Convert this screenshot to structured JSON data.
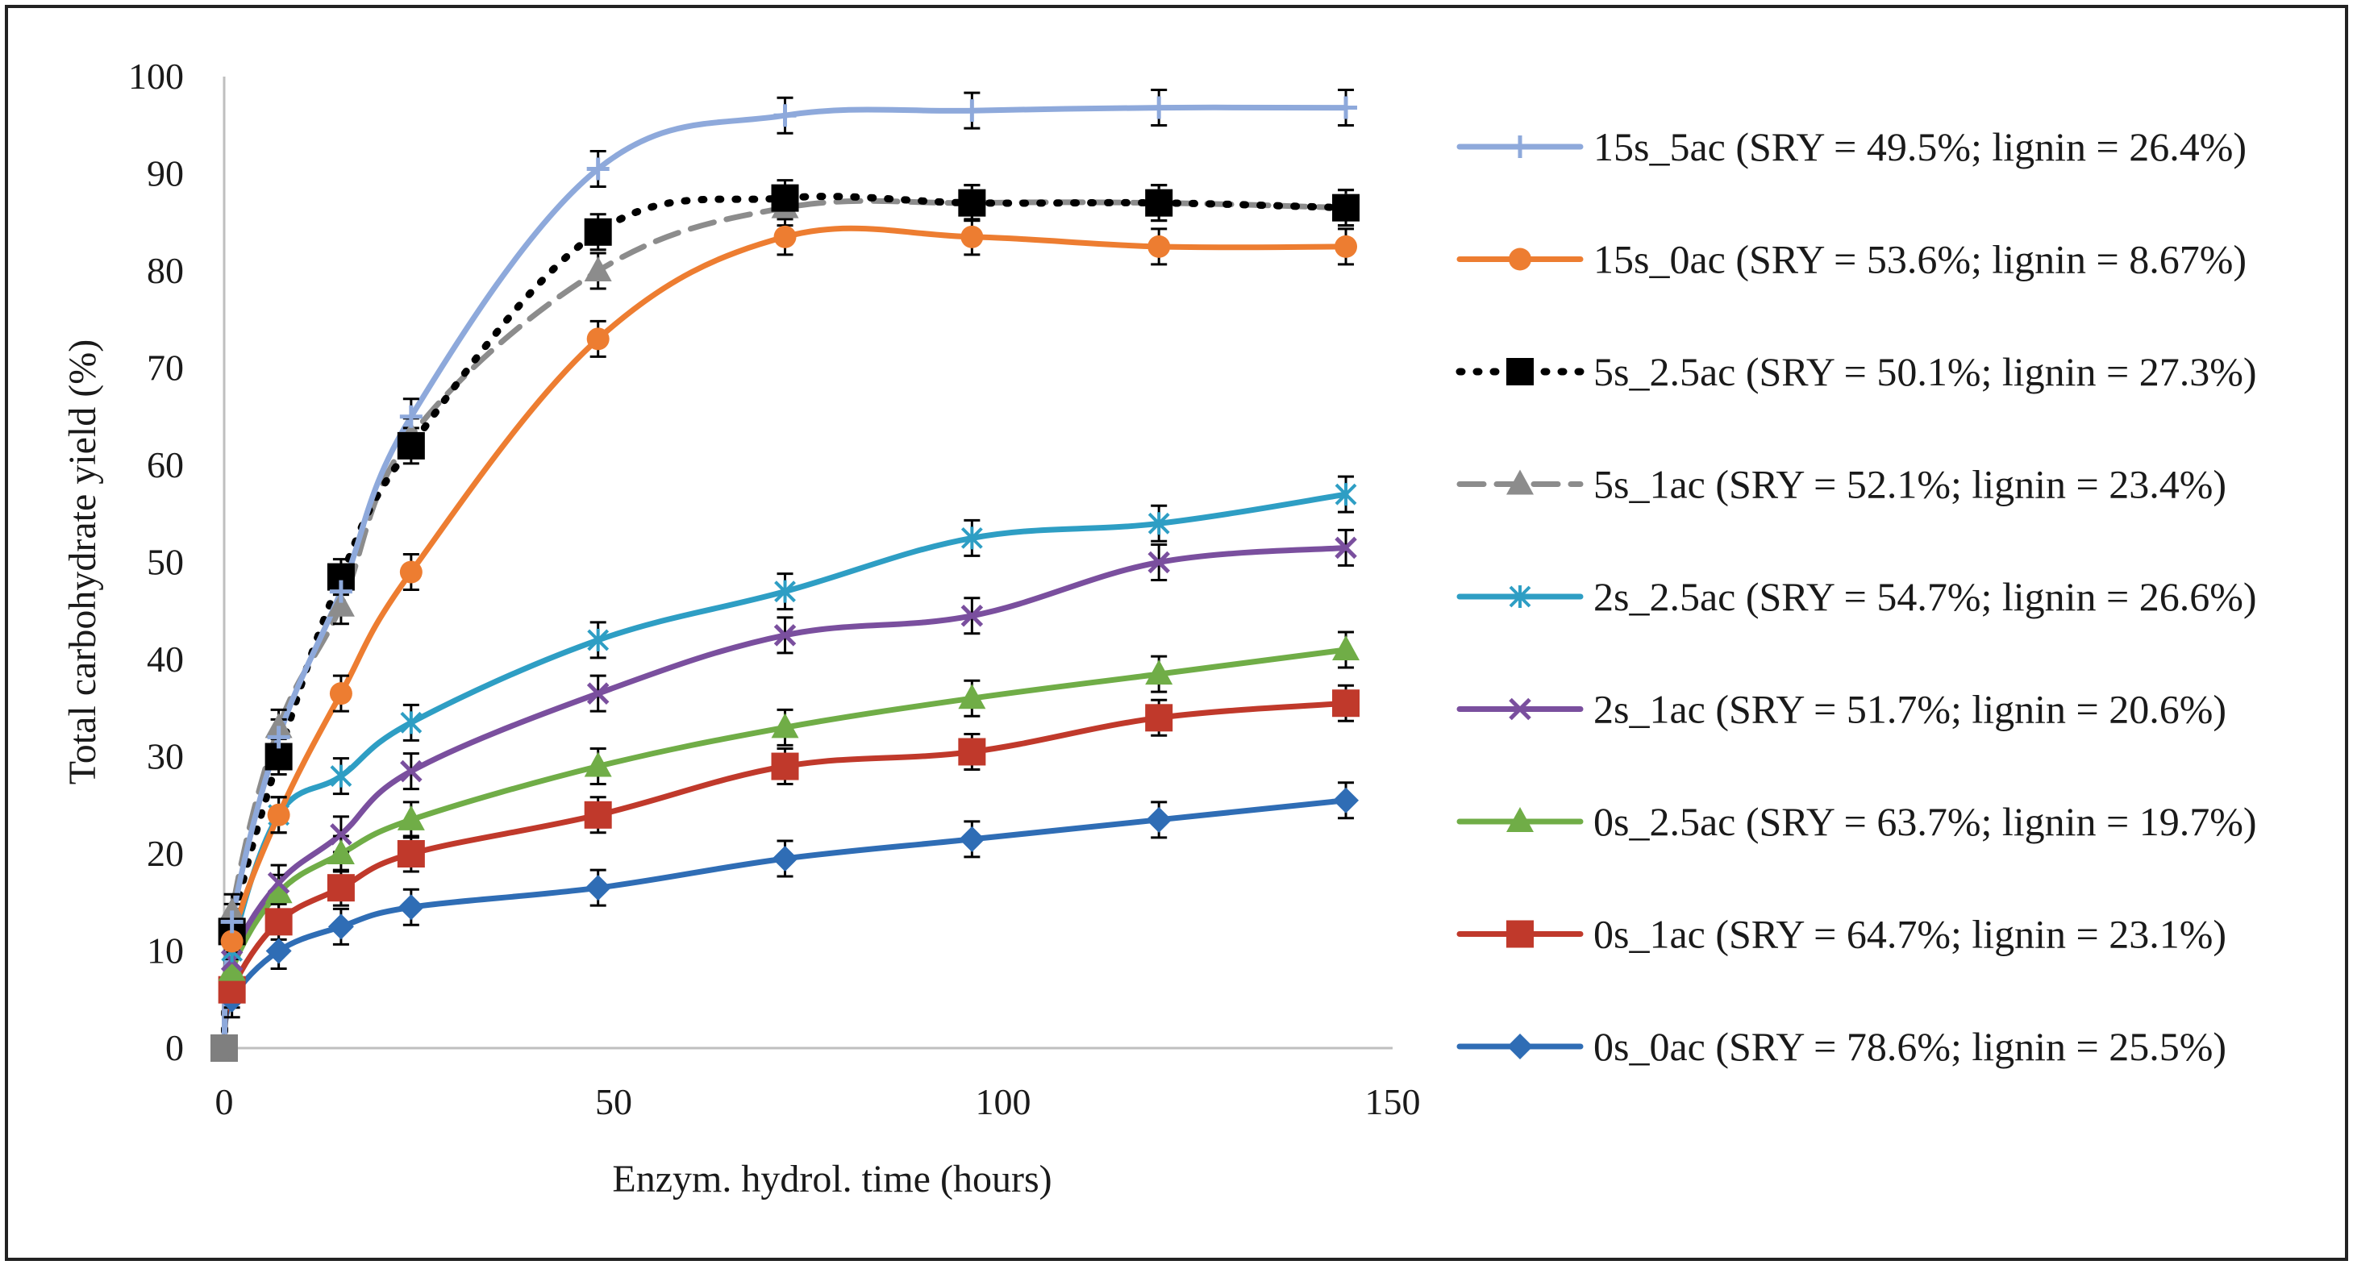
{
  "chart_data": {
    "type": "line",
    "title": "",
    "xlabel": "Enzym. hydrol. time (hours)",
    "ylabel": "Total carbohydrate yield (%)",
    "xlim": [
      0,
      150
    ],
    "ylim": [
      0,
      100
    ],
    "x_ticks": [
      "0",
      "50",
      "100",
      "150"
    ],
    "y_ticks": [
      "0",
      "10",
      "20",
      "30",
      "40",
      "50",
      "60",
      "70",
      "80",
      "90",
      "100"
    ],
    "grid": false,
    "legend_position": "right",
    "x": [
      0,
      1,
      7,
      15,
      24,
      48,
      72,
      96,
      120,
      144
    ],
    "series": [
      {
        "name": "15s_5ac (SRY = 49.5%; lignin = 26.4%)",
        "color": "#8ea9db",
        "marker": "plus",
        "dash": "solid",
        "values": [
          0,
          13,
          32,
          47,
          65,
          90.5,
          96,
          96.5,
          96.8,
          96.8
        ]
      },
      {
        "name": "15s_0ac (SRY = 53.6%; lignin = 8.67%)",
        "color": "#ed7d31",
        "marker": "circle",
        "dash": "solid",
        "values": [
          0,
          11,
          24,
          36.5,
          49,
          73,
          83.5,
          83.5,
          82.5,
          82.5
        ]
      },
      {
        "name": "5s_2.5ac (SRY = 50.1%; lignin = 27.3%)",
        "color": "#000000",
        "marker": "square",
        "dash": "dotted",
        "values": [
          0,
          12,
          30,
          48.5,
          62,
          84,
          87.5,
          87,
          87,
          86.5
        ]
      },
      {
        "name": "5s_1ac (SRY = 52.1%; lignin = 23.4%)",
        "color": "#8c8c8c",
        "marker": "triangle",
        "dash": "dashed",
        "values": [
          0,
          14,
          33,
          45.5,
          63,
          80,
          86.5,
          87,
          87,
          86.5
        ]
      },
      {
        "name": "2s_2.5ac (SRY = 54.7%; lignin = 26.6%)",
        "color": "#2e9ec4",
        "marker": "asterisk",
        "dash": "solid",
        "values": [
          0,
          10,
          24,
          28,
          33.5,
          42,
          47,
          52.5,
          54,
          57
        ]
      },
      {
        "name": "2s_1ac (SRY = 51.7%; lignin = 20.6%)",
        "color": "#7a4f9e",
        "marker": "x",
        "dash": "solid",
        "values": [
          0,
          9,
          17,
          22,
          28.5,
          36.5,
          42.5,
          44.5,
          50,
          51.5
        ]
      },
      {
        "name": "0s_2.5ac (SRY = 63.7%; lignin = 19.7%)",
        "color": "#70ad47",
        "marker": "triangle",
        "dash": "solid",
        "values": [
          0,
          8,
          16,
          20,
          23.5,
          29,
          33,
          36,
          38.5,
          41
        ]
      },
      {
        "name": "0s_1ac (SRY = 64.7%; lignin = 23.1%)",
        "color": "#c0392b",
        "marker": "square",
        "dash": "solid",
        "values": [
          0,
          6,
          13,
          16.5,
          20,
          24,
          29,
          30.5,
          34,
          35.5
        ]
      },
      {
        "name": "0s_0ac (SRY = 78.6%; lignin = 25.5%)",
        "color": "#2f6db5",
        "marker": "diamond",
        "dash": "solid",
        "values": [
          0,
          5,
          10,
          12.5,
          14.5,
          16.5,
          19.5,
          21.5,
          23.5,
          25.5
        ]
      }
    ],
    "error_bars": "black, approx. ±1.5 yield units"
  }
}
